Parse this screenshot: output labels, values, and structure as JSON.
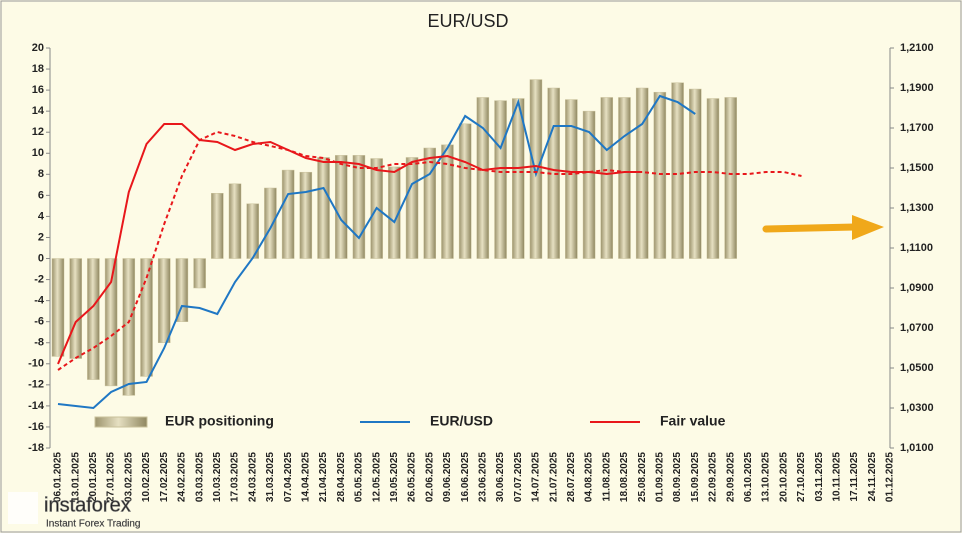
{
  "chart_data": {
    "type": "bar-line",
    "title": "EUR/USD",
    "categories": [
      "06.01.2025",
      "13.01.2025",
      "20.01.2025",
      "27.01.2025",
      "03.02.2025",
      "10.02.2025",
      "17.02.2025",
      "24.02.2025",
      "03.03.2025",
      "10.03.2025",
      "17.03.2025",
      "24.03.2025",
      "31.03.2025",
      "07.04.2025",
      "14.04.2025",
      "21.04.2025",
      "28.04.2025",
      "05.05.2025",
      "12.05.2025",
      "19.05.2025",
      "26.05.2025",
      "02.06.2025",
      "09.06.2025",
      "16.06.2025",
      "23.06.2025",
      "30.06.2025",
      "07.07.2025",
      "14.07.2025",
      "21.07.2025",
      "28.07.2025",
      "04.08.2025",
      "11.08.2025",
      "18.08.2025",
      "25.08.2025",
      "01.09.2025",
      "08.09.2025",
      "15.09.2025",
      "22.09.2025",
      "29.09.2025",
      "06.10.2025",
      "13.10.2025",
      "20.10.2025",
      "27.10.2025",
      "03.11.2025",
      "10.11.2025",
      "17.11.2025",
      "24.11.2025",
      "01.12.2025"
    ],
    "series": [
      {
        "name": "EUR positioning",
        "kind": "bar",
        "color": "#c9c19b",
        "values": [
          -9.3,
          -9.5,
          -11.5,
          -12.1,
          -13.0,
          -11.2,
          -8.0,
          -6.0,
          -2.8,
          6.2,
          7.1,
          5.2,
          6.7,
          8.4,
          8.2,
          9.6,
          9.8,
          9.8,
          9.5,
          8.7,
          9.6,
          10.5,
          10.8,
          12.8,
          15.3,
          15.0,
          15.2,
          17.0,
          16.2,
          15.1,
          14.0,
          15.3,
          15.3,
          16.2,
          15.8,
          16.7,
          16.1,
          15.2,
          15.3,
          null,
          null,
          null,
          null,
          null,
          null,
          null,
          null,
          null
        ]
      },
      {
        "name": "EUR/USD",
        "kind": "line",
        "axis": "y2",
        "color": "#1f77c4",
        "values": [
          1.032,
          1.031,
          1.03,
          1.038,
          1.042,
          1.043,
          1.06,
          1.081,
          1.08,
          1.077,
          1.093,
          1.105,
          1.12,
          1.137,
          1.138,
          1.14,
          1.124,
          1.115,
          1.13,
          1.123,
          1.142,
          1.147,
          1.16,
          1.176,
          1.17,
          1.16,
          1.183,
          1.147,
          1.171,
          1.171,
          1.168,
          1.159,
          1.166,
          1.172,
          1.186,
          1.183,
          1.177,
          null,
          null,
          null,
          null,
          null,
          null,
          null,
          null,
          null,
          null,
          null
        ]
      },
      {
        "name": "Fair value",
        "kind": "line",
        "axis": "y2",
        "color": "#e8171b",
        "values": [
          1.052,
          1.073,
          1.081,
          1.093,
          1.138,
          1.162,
          1.172,
          1.172,
          1.164,
          1.163,
          1.159,
          1.162,
          1.163,
          1.159,
          1.155,
          1.153,
          1.153,
          1.152,
          1.149,
          1.148,
          1.153,
          1.155,
          1.156,
          1.153,
          1.149,
          1.15,
          1.15,
          1.151,
          1.149,
          1.148,
          1.148,
          1.147,
          1.148,
          1.148,
          null,
          null,
          null,
          null,
          null,
          null,
          null,
          null,
          null,
          null,
          null,
          null,
          null,
          null
        ]
      },
      {
        "kind": "line",
        "dashed": true,
        "axis": "y2",
        "color": "#e8171b",
        "values": [
          1.049,
          1.055,
          1.06,
          1.066,
          1.073,
          1.095,
          1.122,
          1.146,
          1.164,
          1.168,
          1.166,
          1.163,
          1.161,
          1.159,
          1.156,
          1.155,
          1.152,
          1.15,
          1.15,
          1.152,
          1.152,
          1.153,
          1.152,
          1.15,
          1.149,
          1.148,
          1.148,
          1.148,
          1.147,
          1.147,
          1.148,
          1.149,
          1.148,
          1.148,
          1.147,
          1.147,
          1.148,
          1.148,
          1.147,
          1.147,
          1.148,
          1.148,
          1.146,
          null,
          null,
          null,
          null,
          null
        ]
      }
    ],
    "ylim": [
      -18,
      20
    ],
    "yticks": [
      -18,
      -16,
      -14,
      -12,
      -10,
      -8,
      -6,
      -4,
      -2,
      0,
      2,
      4,
      6,
      8,
      10,
      12,
      14,
      16,
      18,
      20
    ],
    "y2lim": [
      1.01,
      1.21
    ],
    "y2ticks": [
      {
        "value": 1.01,
        "label": "1,0100"
      },
      {
        "value": 1.03,
        "label": "1,0300"
      },
      {
        "value": 1.05,
        "label": "1,0500"
      },
      {
        "value": 1.07,
        "label": "1,0700"
      },
      {
        "value": 1.09,
        "label": "1,0900"
      },
      {
        "value": 1.11,
        "label": "1,1100"
      },
      {
        "value": 1.13,
        "label": "1,1300"
      },
      {
        "value": 1.15,
        "label": "1,1500"
      },
      {
        "value": 1.17,
        "label": "1,1700"
      },
      {
        "value": 1.19,
        "label": "1,1900"
      },
      {
        "value": 1.21,
        "label": "1,2100"
      }
    ],
    "legend": "bottom",
    "watermark": {
      "brand": "instaforex",
      "tagline": "Instant Forex Trading"
    }
  }
}
